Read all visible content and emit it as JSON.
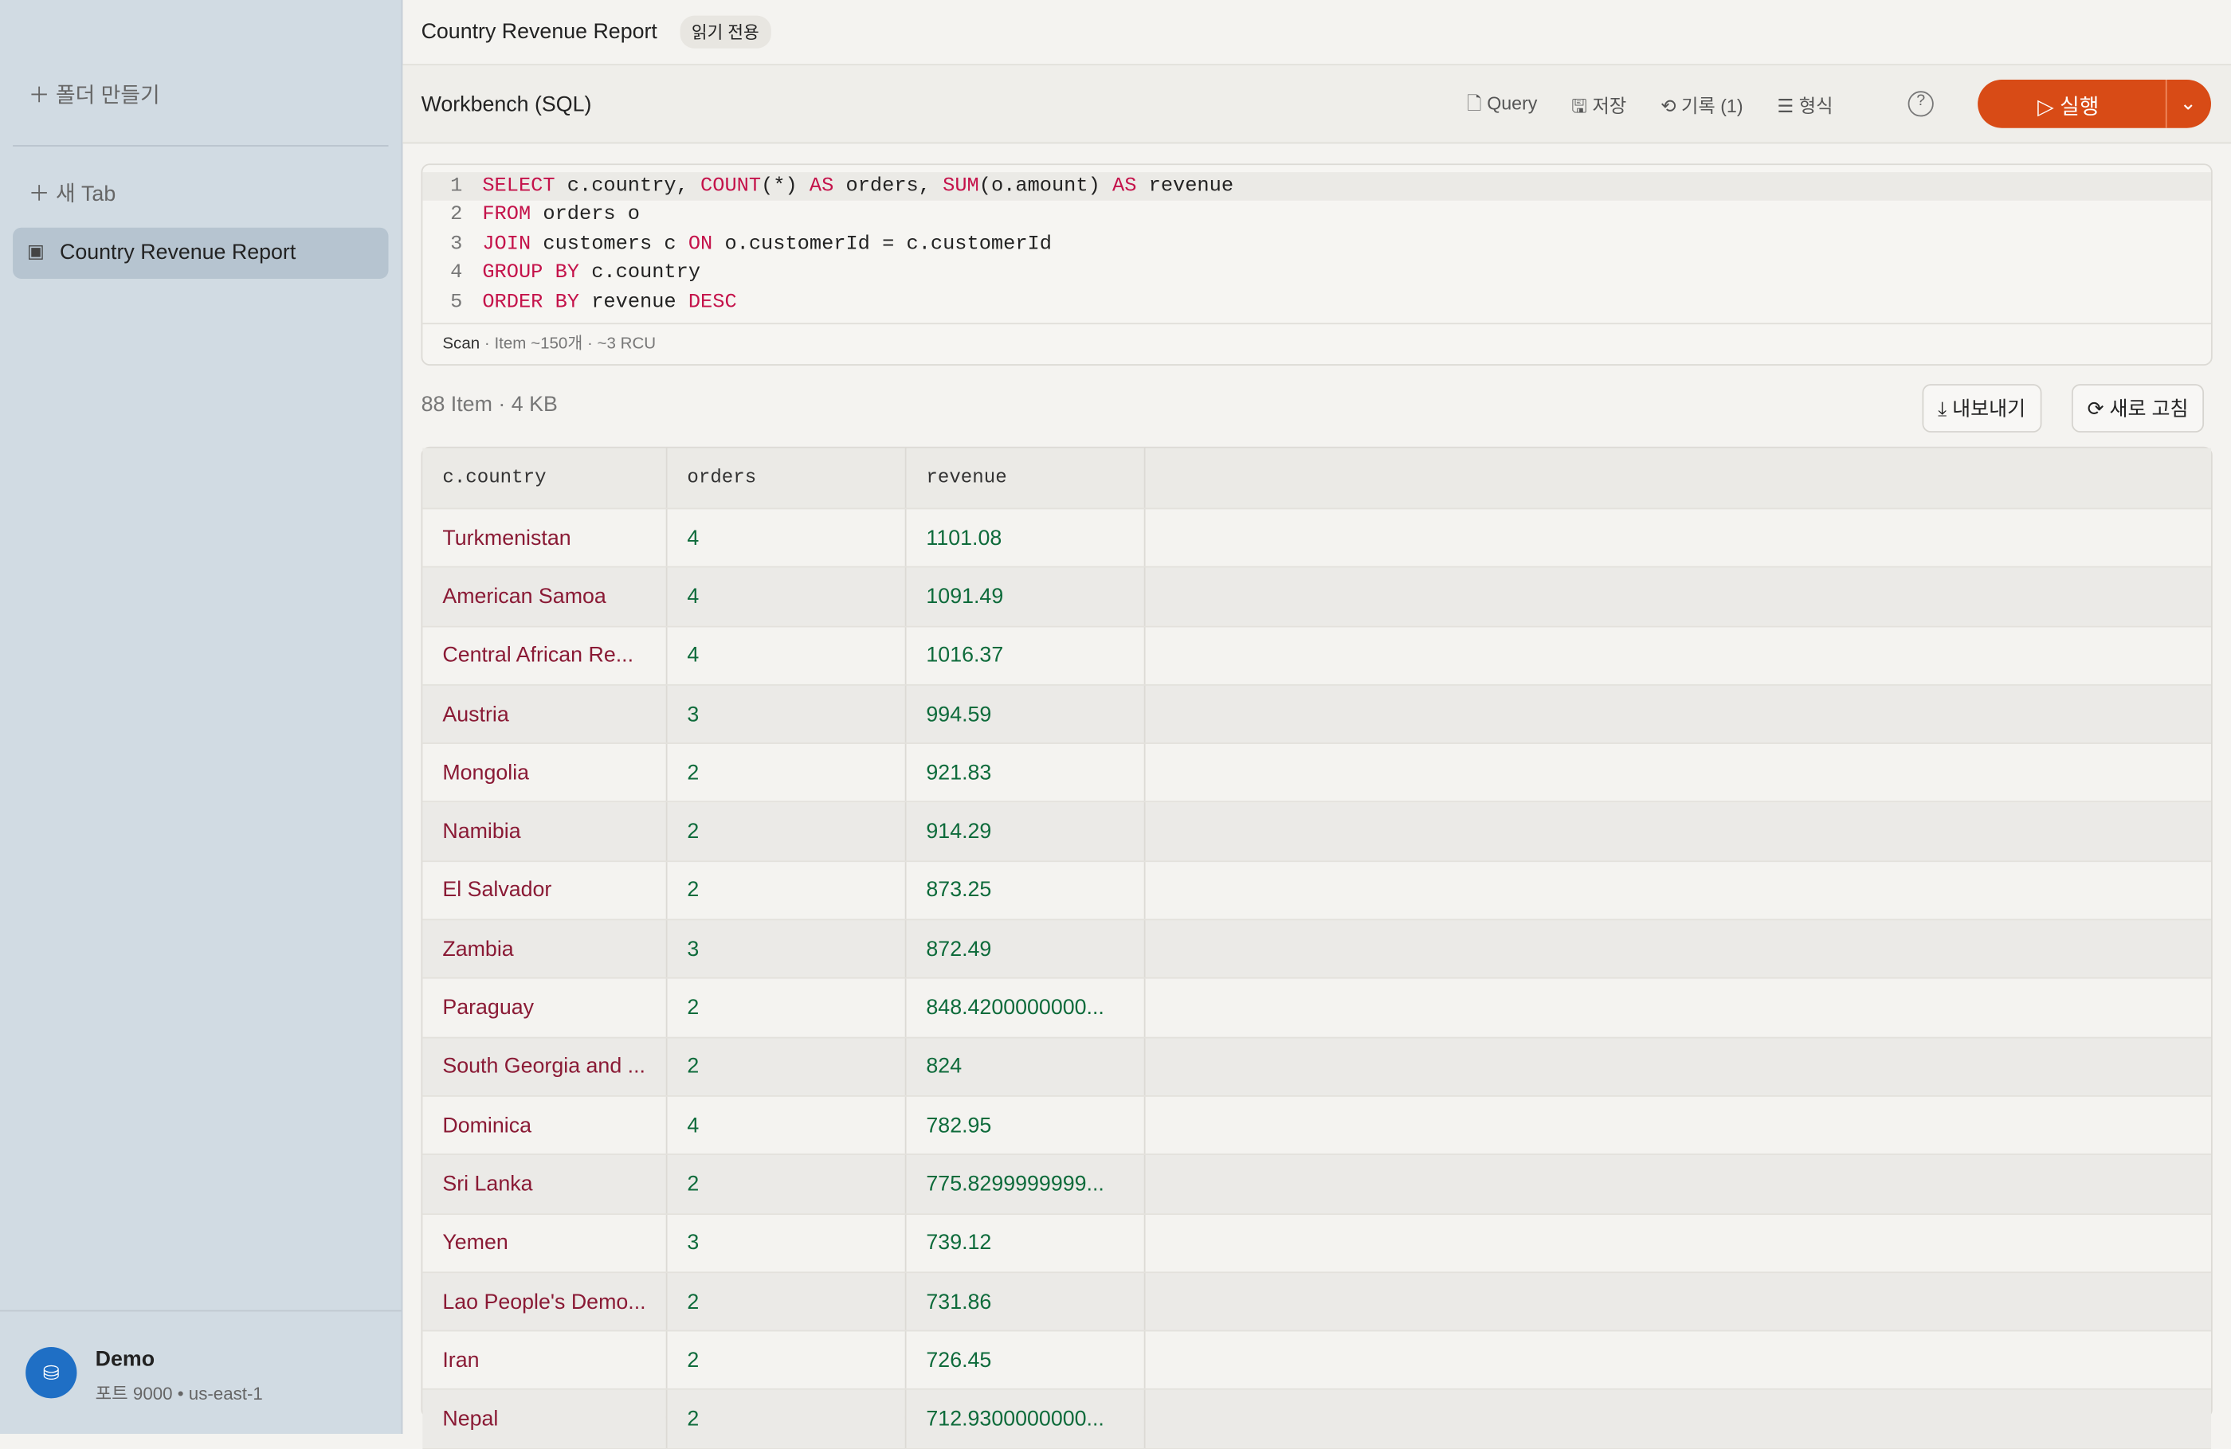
{
  "sidebar": {
    "new_folder": "폴더 만들기",
    "new_tab": "새 Tab",
    "active_item": "Country Revenue Report",
    "connection": {
      "name": "Demo",
      "detail": "포트 9000 • us-east-1"
    }
  },
  "header": {
    "title": "Country Revenue Report",
    "badge": "읽기 전용"
  },
  "toolbar": {
    "title": "Workbench (SQL)",
    "buttons": [
      "Query",
      "저장",
      "기록 (1)",
      "형식"
    ],
    "run": "실행"
  },
  "editor": {
    "lines": [
      {
        "number": "1",
        "code": "SELECT c.country, COUNT(*) AS orders, SUM(o.amount) AS revenue"
      },
      {
        "number": "2",
        "code": "FROM orders o"
      },
      {
        "number": "3",
        "code": "JOIN customers c ON o.customerId = c.customerId"
      },
      {
        "number": "4",
        "code": "GROUP BY c.country"
      },
      {
        "number": "5",
        "code": "ORDER BY revenue DESC"
      }
    ],
    "status": {
      "mode": "Scan",
      "items": "Item ~150개",
      "cost": "~3 RCU"
    }
  },
  "results": {
    "count": "88 Item",
    "size": "4 KB",
    "export": "내보내기",
    "refresh": "새로 고침"
  },
  "table": {
    "columns": [
      "c.country",
      "orders",
      "revenue"
    ],
    "rows": [
      [
        "Turkmenistan",
        "4",
        "1101.08"
      ],
      [
        "American Samoa",
        "4",
        "1091.49"
      ],
      [
        "Central African Re...",
        "4",
        "1016.37"
      ],
      [
        "Austria",
        "3",
        "994.59"
      ],
      [
        "Mongolia",
        "2",
        "921.83"
      ],
      [
        "Namibia",
        "2",
        "914.29"
      ],
      [
        "El Salvador",
        "2",
        "873.25"
      ],
      [
        "Zambia",
        "3",
        "872.49"
      ],
      [
        "Paraguay",
        "2",
        "848.4200000000..."
      ],
      [
        "South Georgia and ...",
        "2",
        "824"
      ],
      [
        "Dominica",
        "4",
        "782.95"
      ],
      [
        "Sri Lanka",
        "2",
        "775.8299999999..."
      ],
      [
        "Yemen",
        "3",
        "739.12"
      ],
      [
        "Lao People's Demo...",
        "2",
        "731.86"
      ],
      [
        "Iran",
        "2",
        "726.45"
      ],
      [
        "Nepal",
        "2",
        "712.9300000000..."
      ]
    ]
  }
}
